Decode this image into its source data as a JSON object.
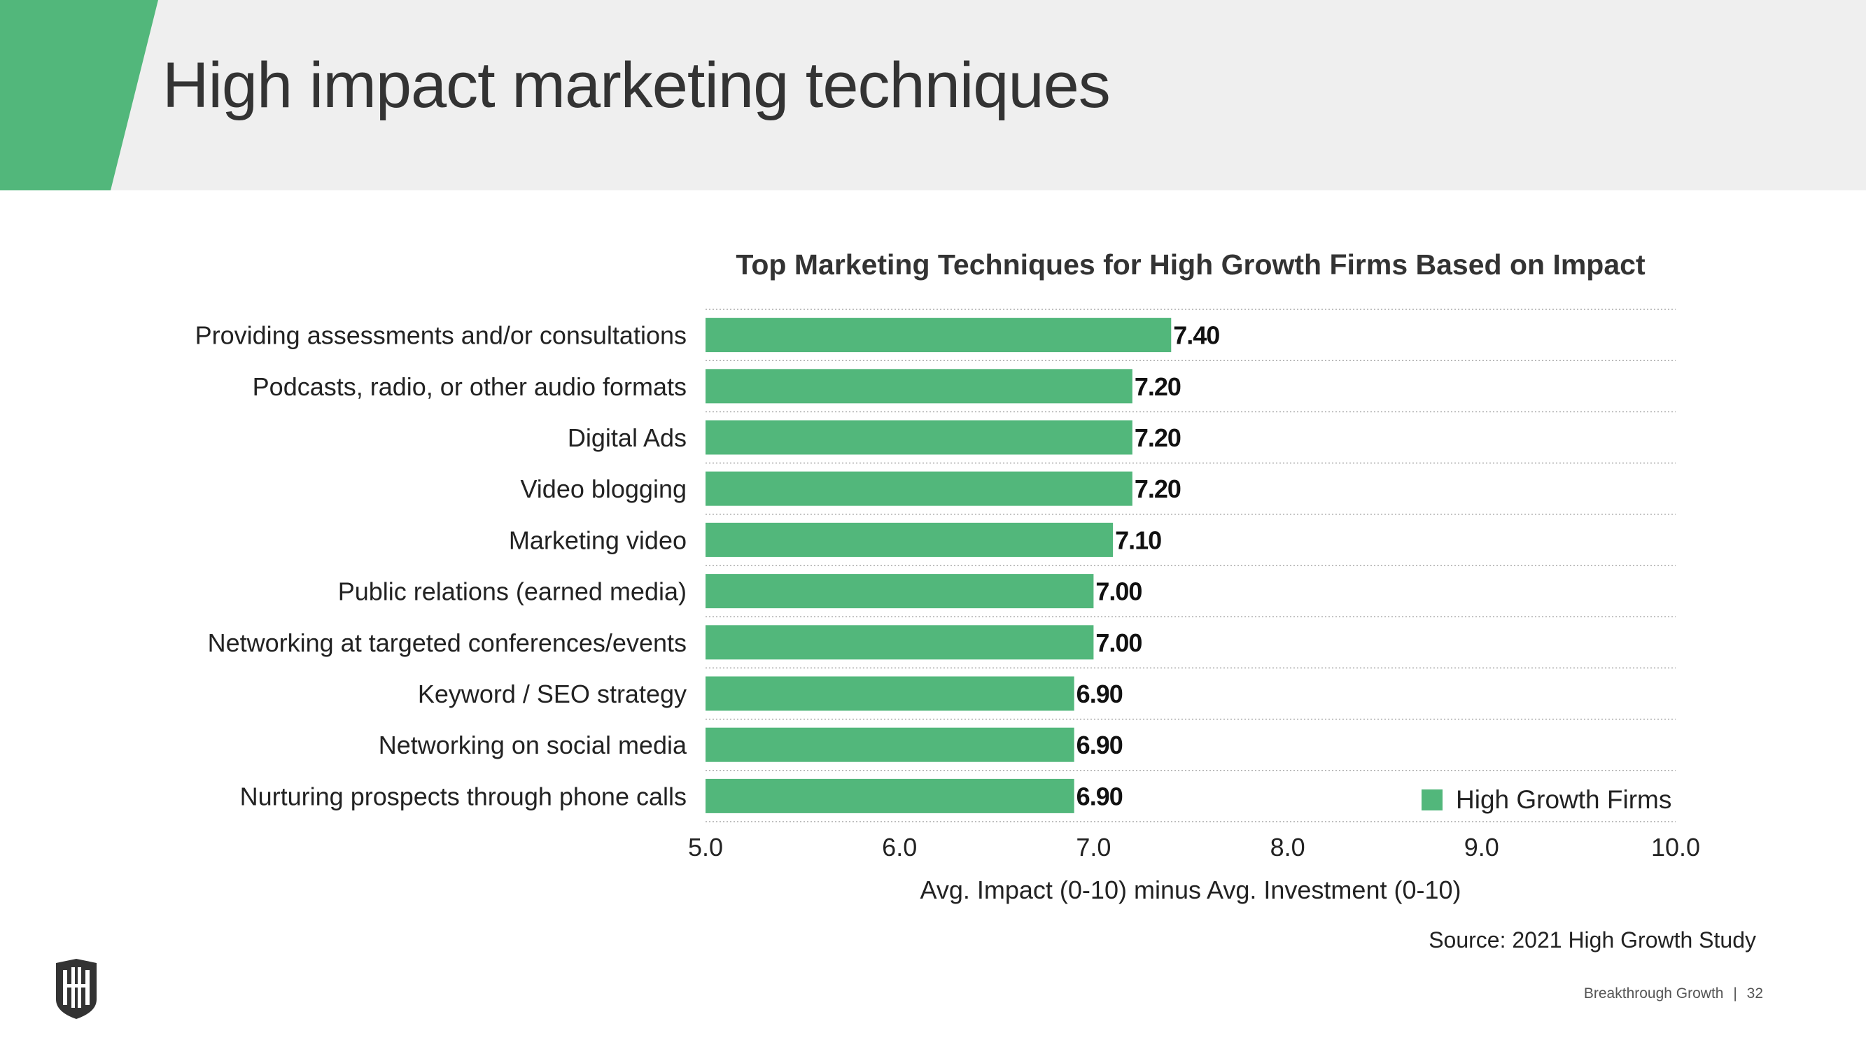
{
  "header": {
    "title": "High impact marketing techniques"
  },
  "colors": {
    "accent": "#52b77b",
    "bar": "#52b77b",
    "header_bg": "#efefef",
    "text": "#333333"
  },
  "chart_data": {
    "type": "bar",
    "orientation": "horizontal",
    "title": "Top Marketing Techniques for High Growth Firms Based on Impact",
    "xlabel": "Avg. Impact (0-10) minus Avg. Investment (0-10)",
    "ylabel": "",
    "xlim": [
      5.0,
      10.0
    ],
    "xticks": [
      "5.0",
      "6.0",
      "7.0",
      "8.0",
      "9.0",
      "10.0"
    ],
    "grid": "horizontal dotted",
    "legend_position": "bottom-right",
    "categories": [
      "Providing assessments and/or consultations",
      "Podcasts, radio, or other audio formats",
      "Digital Ads",
      "Video blogging",
      "Marketing video",
      "Public relations (earned media)",
      "Networking at targeted conferences/events",
      "Keyword / SEO strategy",
      "Networking on social media",
      "Nurturing prospects through phone calls"
    ],
    "series": [
      {
        "name": "High Growth Firms",
        "values": [
          7.4,
          7.2,
          7.2,
          7.2,
          7.1,
          7.0,
          7.0,
          6.9,
          6.9,
          6.9
        ],
        "labels": [
          "7.40",
          "7.20",
          "7.20",
          "7.20",
          "7.10",
          "7.00",
          "7.00",
          "6.90",
          "6.90",
          "6.90"
        ]
      }
    ]
  },
  "source": "Source: 2021 High Growth Study",
  "footer": {
    "brand": "Breakthrough Growth",
    "separator": "|",
    "page": "32"
  },
  "logo": {
    "name": "shield-logo"
  }
}
